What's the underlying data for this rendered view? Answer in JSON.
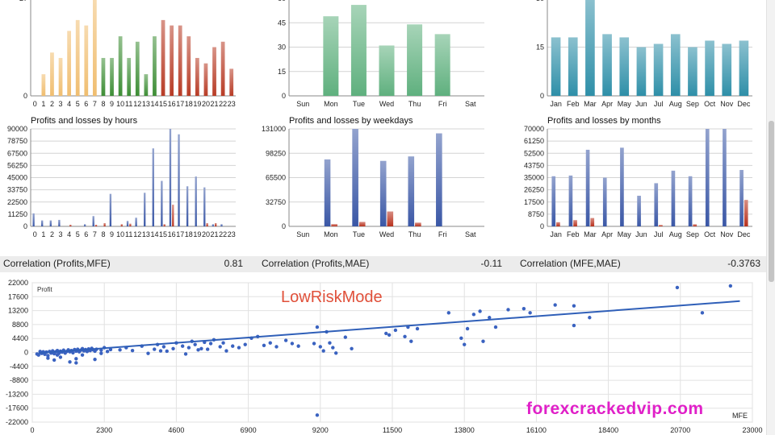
{
  "correlations": [
    {
      "label": "Correlation (Profits,MFE)",
      "value": "0.81"
    },
    {
      "label": "Correlation (Profits,MAE)",
      "value": "-0.11"
    },
    {
      "label": "Correlation (MFE,MAE)",
      "value": "-0.3763"
    }
  ],
  "watermark_main": "LowRiskMode",
  "watermark_site": "forexcrackedvip.com",
  "chart_data": [
    {
      "type": "bar",
      "title": "",
      "categories": [
        "0",
        "1",
        "2",
        "3",
        "4",
        "5",
        "6",
        "7",
        "8",
        "9",
        "10",
        "11",
        "12",
        "13",
        "14",
        "15",
        "16",
        "17",
        "18",
        "19",
        "20",
        "21",
        "22",
        "23"
      ],
      "yticks": [
        "0",
        "27"
      ],
      "ylim": [
        0,
        27
      ],
      "values": [
        0,
        6,
        12,
        10.5,
        18,
        21,
        19.5,
        27,
        10.5,
        10.5,
        16.5,
        10.5,
        15,
        6,
        16.5,
        21,
        19.5,
        19.5,
        16.5,
        10.5,
        9,
        13.5,
        15,
        7.5
      ],
      "colors": [
        "#f0be70",
        "#f0be70",
        "#f0be70",
        "#f0be70",
        "#f0be70",
        "#f0be70",
        "#f0be70",
        "#f0be70",
        "#3e8e36",
        "#3e8e36",
        "#3e8e36",
        "#3e8e36",
        "#3e8e36",
        "#3e8e36",
        "#3e8e36",
        "#b83c26",
        "#b83c26",
        "#b83c26",
        "#b83c26",
        "#b83c26",
        "#b83c26",
        "#b83c26",
        "#b83c26",
        "#b83c26"
      ]
    },
    {
      "type": "bar",
      "title": "",
      "categories": [
        "Sun",
        "Mon",
        "Tue",
        "Wed",
        "Thu",
        "Fri",
        "Sat"
      ],
      "yticks": [
        "0",
        "15",
        "30",
        "45",
        "60"
      ],
      "ylim": [
        0,
        60
      ],
      "values": [
        0,
        49,
        56,
        31,
        44,
        38,
        0
      ],
      "colors": [
        "#5fb07e"
      ]
    },
    {
      "type": "bar",
      "title": "",
      "categories": [
        "Jan",
        "Feb",
        "Mar",
        "Apr",
        "May",
        "Jun",
        "Jul",
        "Aug",
        "Sep",
        "Oct",
        "Nov",
        "Dec"
      ],
      "yticks": [
        "0",
        "15",
        "30"
      ],
      "ylim": [
        0,
        30
      ],
      "values": [
        18,
        18,
        30,
        19,
        18,
        15,
        16,
        19,
        15,
        17,
        16,
        17
      ],
      "colors": [
        "#2e8fa8"
      ]
    },
    {
      "type": "bar",
      "title": "Profits and losses by hours",
      "categories": [
        "0",
        "1",
        "2",
        "3",
        "4",
        "5",
        "6",
        "7",
        "8",
        "9",
        "10",
        "11",
        "12",
        "13",
        "14",
        "15",
        "16",
        "17",
        "18",
        "19",
        "20",
        "21",
        "22",
        "23"
      ],
      "yticks": [
        "0",
        "11250",
        "22500",
        "33750",
        "45000",
        "56250",
        "67500",
        "78750",
        "90000"
      ],
      "ylim": [
        0,
        90000
      ],
      "series": [
        {
          "name": "Profits",
          "values": [
            12000,
            5500,
            5500,
            6000,
            0,
            0,
            2000,
            9500,
            0,
            30000,
            0,
            5000,
            8000,
            31000,
            72000,
            42000,
            90000,
            85000,
            37000,
            46000,
            36000,
            2000,
            2000,
            0
          ],
          "color": "#3a57a6"
        },
        {
          "name": "Losses",
          "values": [
            0,
            0,
            0,
            0,
            1500,
            0,
            0,
            1500,
            3000,
            0,
            2000,
            2500,
            0,
            0,
            0,
            2000,
            20000,
            0,
            0,
            0,
            3000,
            3000,
            0,
            0
          ],
          "color": "#b8321e"
        }
      ]
    },
    {
      "type": "bar",
      "title": "Profits and losses by weekdays",
      "categories": [
        "Sun",
        "Mon",
        "Tue",
        "Wed",
        "Thu",
        "Fri",
        "Sat"
      ],
      "yticks": [
        "0",
        "32750",
        "65500",
        "98250",
        "131000"
      ],
      "ylim": [
        0,
        131000
      ],
      "series": [
        {
          "name": "Profits",
          "values": [
            0,
            90000,
            131000,
            88000,
            94000,
            125000,
            0
          ],
          "color": "#3a57a6"
        },
        {
          "name": "Losses",
          "values": [
            0,
            3000,
            6000,
            20000,
            5000,
            0,
            0
          ],
          "color": "#b8321e"
        }
      ]
    },
    {
      "type": "bar",
      "title": "Profits and losses by months",
      "categories": [
        "Jan",
        "Feb",
        "Mar",
        "Apr",
        "May",
        "Jun",
        "Jul",
        "Aug",
        "Sep",
        "Oct",
        "Nov",
        "Dec"
      ],
      "yticks": [
        "0",
        "8750",
        "17500",
        "26250",
        "35000",
        "43750",
        "52500",
        "61250",
        "70000"
      ],
      "ylim": [
        0,
        70000
      ],
      "series": [
        {
          "name": "Profits",
          "values": [
            36000,
            36500,
            55000,
            35000,
            56500,
            22000,
            31000,
            40000,
            36000,
            70000,
            70000,
            40500
          ],
          "color": "#3a57a6"
        },
        {
          "name": "Losses",
          "values": [
            3000,
            4500,
            6000,
            0,
            0,
            0,
            1000,
            0,
            1500,
            0,
            0,
            19000
          ],
          "color": "#b8321e"
        }
      ]
    },
    {
      "type": "scatter",
      "title": "",
      "ylabel": "Profit",
      "xlabel": "MFE",
      "xticks": [
        "0",
        "2300",
        "4600",
        "6900",
        "9200",
        "11500",
        "13800",
        "16100",
        "18400",
        "20700",
        "23000"
      ],
      "yticks": [
        "22000",
        "17600",
        "13200",
        "8800",
        "4400",
        "0",
        "-4400",
        "-8800",
        "-13200",
        "-17600",
        "-22000"
      ],
      "xlim": [
        0,
        23000
      ],
      "ylim": [
        -22000,
        22000
      ],
      "trendline": [
        [
          200,
          -200
        ],
        [
          22600,
          16200
        ]
      ],
      "points": [
        [
          150,
          -500
        ],
        [
          200,
          -800
        ],
        [
          250,
          300
        ],
        [
          300,
          -300
        ],
        [
          350,
          200
        ],
        [
          400,
          -600
        ],
        [
          450,
          100
        ],
        [
          500,
          -1000
        ],
        [
          550,
          300
        ],
        [
          600,
          -200
        ],
        [
          650,
          500
        ],
        [
          700,
          -400
        ],
        [
          750,
          200
        ],
        [
          800,
          600
        ],
        [
          850,
          -300
        ],
        [
          900,
          400
        ],
        [
          950,
          100
        ],
        [
          1000,
          700
        ],
        [
          1050,
          -200
        ],
        [
          1100,
          300
        ],
        [
          1150,
          800
        ],
        [
          1200,
          200
        ],
        [
          1250,
          600
        ],
        [
          1300,
          -100
        ],
        [
          1350,
          900
        ],
        [
          1400,
          400
        ],
        [
          1450,
          1000
        ],
        [
          1500,
          200
        ],
        [
          1550,
          700
        ],
        [
          1600,
          1200
        ],
        [
          1650,
          500
        ],
        [
          1700,
          900
        ],
        [
          1750,
          300
        ],
        [
          1800,
          1100
        ],
        [
          1850,
          600
        ],
        [
          1900,
          1300
        ],
        [
          1950,
          800
        ],
        [
          2000,
          400
        ],
        [
          2050,
          1000
        ],
        [
          500,
          -1800
        ],
        [
          700,
          -2400
        ],
        [
          800,
          -800
        ],
        [
          1200,
          -3000
        ],
        [
          1400,
          -2000
        ],
        [
          1600,
          -800
        ],
        [
          1400,
          -3300
        ],
        [
          2000,
          -2200
        ],
        [
          900,
          -1500
        ],
        [
          2200,
          -300
        ],
        [
          2200,
          700
        ],
        [
          2300,
          1500
        ],
        [
          2400,
          300
        ],
        [
          2500,
          900
        ],
        [
          2800,
          800
        ],
        [
          3000,
          1500
        ],
        [
          3200,
          600
        ],
        [
          3500,
          2000
        ],
        [
          3700,
          -300
        ],
        [
          3900,
          1000
        ],
        [
          4000,
          2500
        ],
        [
          4100,
          500
        ],
        [
          4200,
          1800
        ],
        [
          4300,
          400
        ],
        [
          4500,
          1200
        ],
        [
          4600,
          3000
        ],
        [
          4800,
          2000
        ],
        [
          4900,
          -500
        ],
        [
          5000,
          1500
        ],
        [
          5100,
          3500
        ],
        [
          5200,
          2500
        ],
        [
          5300,
          800
        ],
        [
          5400,
          1200
        ],
        [
          5500,
          3200
        ],
        [
          5600,
          1000
        ],
        [
          5700,
          2800
        ],
        [
          5800,
          4000
        ],
        [
          6000,
          1800
        ],
        [
          6100,
          3000
        ],
        [
          6200,
          500
        ],
        [
          6400,
          2000
        ],
        [
          6600,
          1500
        ],
        [
          6800,
          2500
        ],
        [
          7000,
          4500
        ],
        [
          7200,
          5000
        ],
        [
          7400,
          2200
        ],
        [
          7600,
          3000
        ],
        [
          7800,
          1800
        ],
        [
          8100,
          3800
        ],
        [
          8300,
          2800
        ],
        [
          8500,
          2000
        ],
        [
          9000,
          2800
        ],
        [
          9100,
          8000
        ],
        [
          9200,
          1800
        ],
        [
          9300,
          500
        ],
        [
          9400,
          6500
        ],
        [
          9500,
          3000
        ],
        [
          9600,
          1500
        ],
        [
          9700,
          -200
        ],
        [
          10200,
          1200
        ],
        [
          10000,
          4800
        ],
        [
          11300,
          6000
        ],
        [
          11400,
          5500
        ],
        [
          11600,
          7000
        ],
        [
          11900,
          5000
        ],
        [
          12000,
          8000
        ],
        [
          12100,
          3500
        ],
        [
          12300,
          7500
        ],
        [
          13300,
          12500
        ],
        [
          13700,
          4500
        ],
        [
          13800,
          2500
        ],
        [
          13900,
          7500
        ],
        [
          14100,
          12000
        ],
        [
          14300,
          13000
        ],
        [
          14400,
          3500
        ],
        [
          14600,
          11000
        ],
        [
          14800,
          8000
        ],
        [
          15200,
          13500
        ],
        [
          15700,
          13800
        ],
        [
          15900,
          12500
        ],
        [
          16700,
          15000
        ],
        [
          17300,
          14700
        ],
        [
          17300,
          8500
        ],
        [
          17800,
          11000
        ],
        [
          20600,
          20500
        ],
        [
          21400,
          12500
        ],
        [
          22300,
          21000
        ],
        [
          9100,
          -19800
        ]
      ],
      "point_color": "#3a62c0"
    }
  ]
}
